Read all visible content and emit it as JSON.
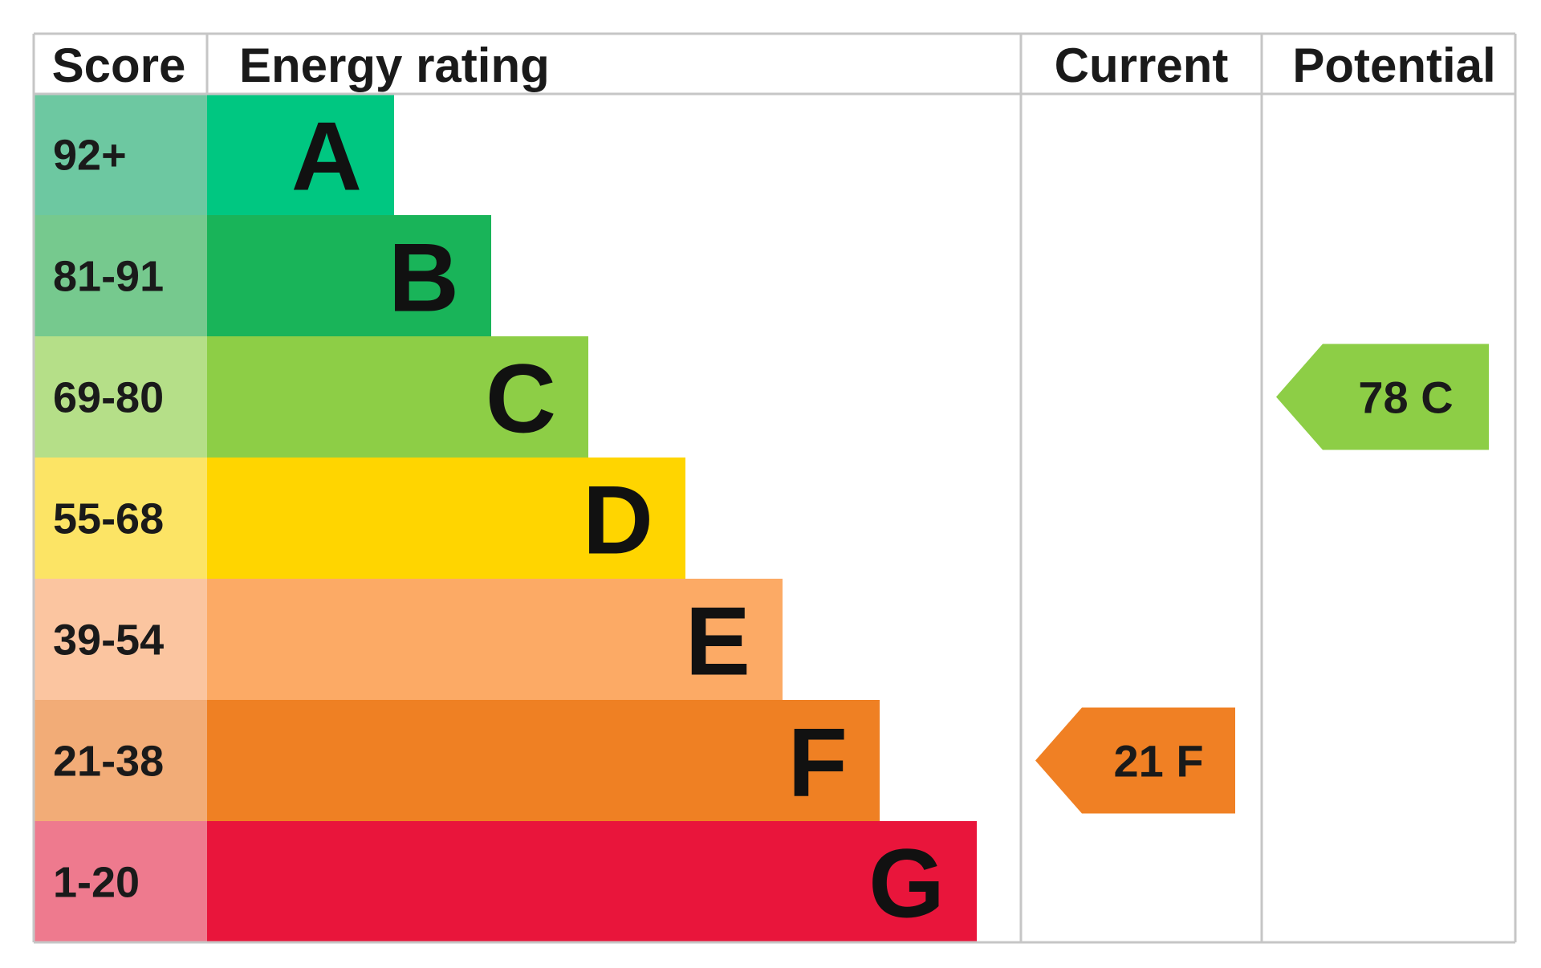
{
  "chart_data": {
    "type": "bar",
    "columns": {
      "score": "Score",
      "rating": "Energy rating",
      "current": "Current",
      "potential": "Potential"
    },
    "bands": [
      {
        "letter": "A",
        "score": "92+",
        "color": "#00C781",
        "score_color": "#6DC8A1"
      },
      {
        "letter": "B",
        "score": "81-91",
        "color": "#19B459",
        "score_color": "#76C98E"
      },
      {
        "letter": "C",
        "score": "69-80",
        "color": "#8DCE46",
        "score_color": "#B5DF88"
      },
      {
        "letter": "D",
        "score": "55-68",
        "color": "#FFD500",
        "score_color": "#FCE465"
      },
      {
        "letter": "E",
        "score": "39-54",
        "color": "#FCAA65",
        "score_color": "#FBC5A0"
      },
      {
        "letter": "F",
        "score": "21-38",
        "color": "#EF8023",
        "score_color": "#F2AC77"
      },
      {
        "letter": "G",
        "score": "1-20",
        "color": "#E9153B",
        "score_color": "#EE7A8E"
      }
    ],
    "current": {
      "value": 21,
      "band": "F",
      "label": "21 F",
      "color": "#F08024"
    },
    "potential": {
      "value": 78,
      "band": "C",
      "label": "78 C",
      "color": "#8DCE46"
    }
  }
}
